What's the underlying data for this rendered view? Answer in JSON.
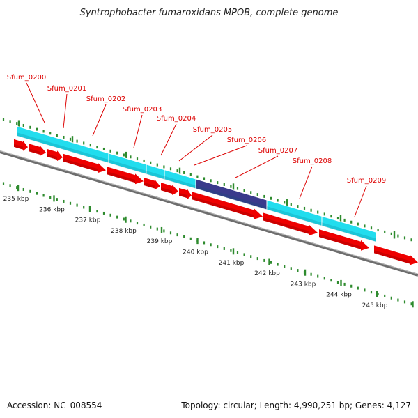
{
  "title": "Syntrophobacter fumaroxidans MPOB, complete genome",
  "accession": "Accession: NC_008554",
  "summary": "Topology: circular; Length: 4,990,251 bp; Genes: 4,127",
  "colors": {
    "cds": "#ee0000",
    "gene": "#22ddee",
    "highlight": "#3a3a8c",
    "backbone": "#888888",
    "tick": "#2e8b2e",
    "label": "#dd0000"
  },
  "scale": {
    "labels": [
      "235 kbp",
      "236 kbp",
      "237 kbp",
      "238 kbp",
      "239 kbp",
      "240 kbp",
      "241 kbp",
      "242 kbp",
      "243 kbp",
      "244 kbp",
      "245 kbp"
    ]
  },
  "genes": [
    {
      "name": "Sfum_0200"
    },
    {
      "name": "Sfum_0201"
    },
    {
      "name": "Sfum_0202"
    },
    {
      "name": "Sfum_0203"
    },
    {
      "name": "Sfum_0204"
    },
    {
      "name": "Sfum_0205"
    },
    {
      "name": "Sfum_0206"
    },
    {
      "name": "Sfum_0207"
    },
    {
      "name": "Sfum_0208"
    },
    {
      "name": "Sfum_0209"
    }
  ]
}
